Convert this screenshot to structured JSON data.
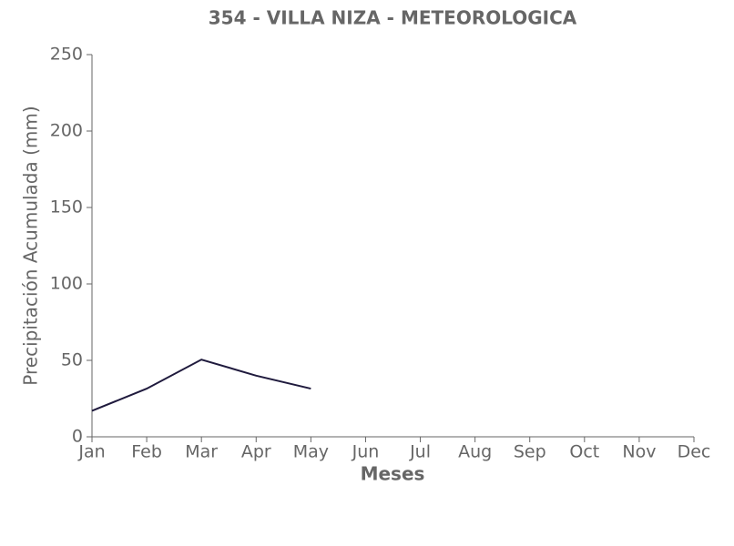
{
  "chart_data": {
    "type": "line",
    "title": "354 - VILLA NIZA - METEOROLOGICA",
    "x_label": "Meses",
    "y_label": "Precipitación Acumulada (mm)",
    "categories": [
      "Jan",
      "Feb",
      "Mar",
      "Apr",
      "May",
      "Jun",
      "Jul",
      "Aug",
      "Sep",
      "Oct",
      "Nov",
      "Dec"
    ],
    "series": [
      {
        "name": "354",
        "color": "#1f1a3d",
        "values": [
          17,
          31.5,
          50.5,
          40,
          31.5,
          null,
          null,
          null,
          null,
          null,
          null,
          null
        ]
      }
    ],
    "ylim": [
      0,
      250
    ],
    "yticks": [
      0,
      50,
      100,
      150,
      200,
      250
    ],
    "grid": false
  }
}
